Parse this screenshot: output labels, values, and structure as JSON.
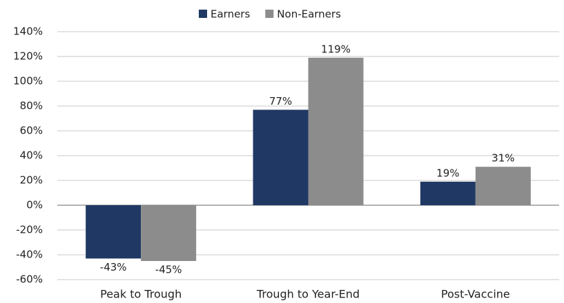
{
  "chart_data": {
    "type": "bar",
    "categories": [
      "Peak to Trough",
      "Trough to Year-End",
      "Post-Vaccine"
    ],
    "series": [
      {
        "name": "Earners",
        "color": "#203864",
        "values": [
          -43,
          77,
          19
        ],
        "value_labels": [
          "-43%",
          "77%",
          "19%"
        ]
      },
      {
        "name": "Non-Earners",
        "color": "#8c8c8c",
        "values": [
          -45,
          119,
          31
        ],
        "value_labels": [
          "-45%",
          "119%",
          "31%"
        ]
      }
    ],
    "ylim": [
      -60,
      140
    ],
    "yticks": [
      {
        "value": -60,
        "label": "-60%"
      },
      {
        "value": -40,
        "label": "-40%"
      },
      {
        "value": -20,
        "label": "-20%"
      },
      {
        "value": 0,
        "label": "0%"
      },
      {
        "value": 20,
        "label": "20%"
      },
      {
        "value": 40,
        "label": "40%"
      },
      {
        "value": 60,
        "label": "60%"
      },
      {
        "value": 80,
        "label": "80%"
      },
      {
        "value": 100,
        "label": "100%"
      },
      {
        "value": 120,
        "label": "120%"
      },
      {
        "value": 140,
        "label": "140%"
      }
    ],
    "grid": true,
    "legend": "top"
  }
}
